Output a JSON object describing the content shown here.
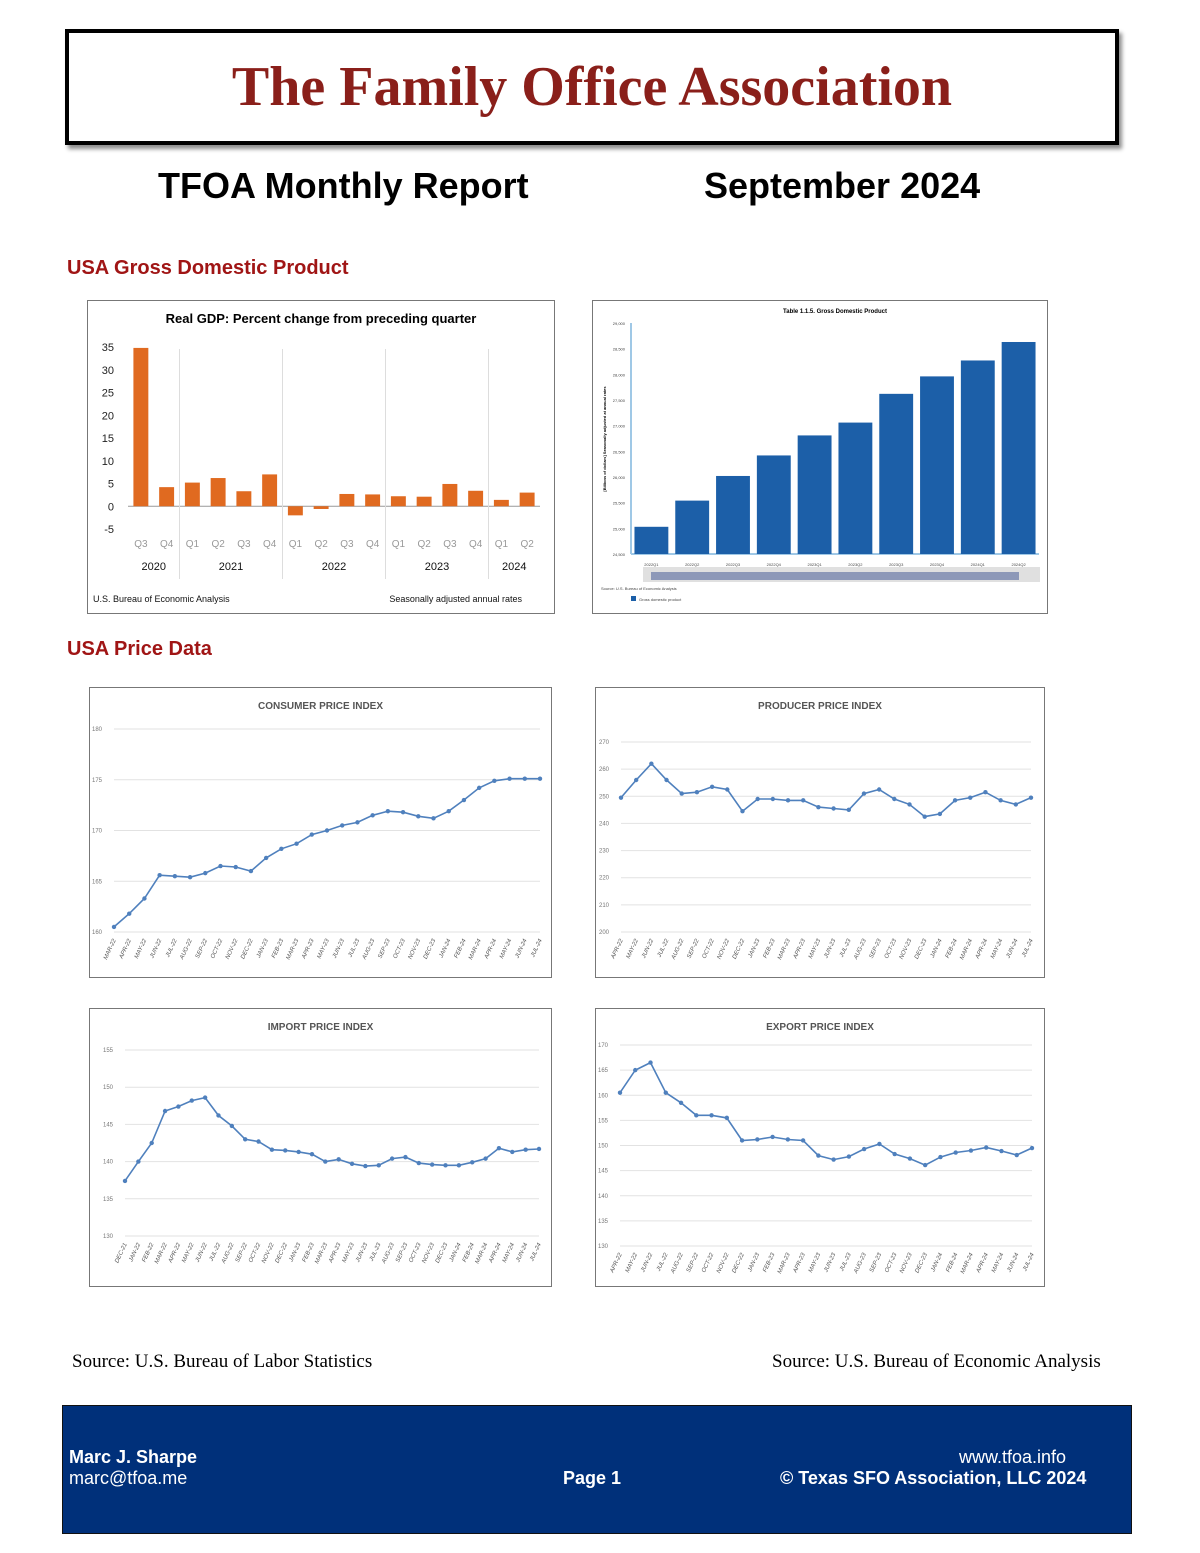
{
  "header": {
    "org_name": "The Family Office Association",
    "report_title": "TFOA Monthly Report",
    "report_date": "September 2024"
  },
  "sections": {
    "gdp": "USA Gross Domestic Product",
    "price": "USA Price Data"
  },
  "colors": {
    "title": "#8a1f1a",
    "section": "#a01515",
    "gdp_bar": "#e06a20",
    "gdp_level_bar": "#1c5fa8",
    "line": "#4f80bd",
    "footer_bg": "#00307a"
  },
  "sources": {
    "left": "Source: U.S. Bureau of Labor Statistics",
    "right": "Source: U.S. Bureau of Economic Analysis"
  },
  "footer": {
    "name": "Marc J. Sharpe",
    "email": "marc@tfoa.me",
    "page": "Page 1",
    "website": "www.tfoa.info",
    "copyright": "© Texas SFO Association, LLC 2024"
  },
  "chart_data": [
    {
      "type": "bar",
      "title": "Real GDP: Percent change from preceding quarter",
      "categories": [
        "Q3",
        "Q4",
        "Q1",
        "Q2",
        "Q3",
        "Q4",
        "Q1",
        "Q2",
        "Q3",
        "Q4",
        "Q1",
        "Q2",
        "Q3",
        "Q4",
        "Q1",
        "Q2"
      ],
      "years": [
        {
          "label": "2020",
          "start": 0,
          "end": 1
        },
        {
          "label": "2021",
          "start": 2,
          "end": 5
        },
        {
          "label": "2022",
          "start": 6,
          "end": 9
        },
        {
          "label": "2023",
          "start": 10,
          "end": 13
        },
        {
          "label": "2024",
          "start": 14,
          "end": 15
        }
      ],
      "values": [
        34.8,
        4.2,
        5.2,
        6.2,
        3.3,
        7.0,
        -2.0,
        -0.6,
        2.7,
        2.6,
        2.2,
        2.1,
        4.9,
        3.4,
        1.4,
        3.0
      ],
      "yticks": [
        35,
        30,
        25,
        20,
        15,
        10,
        5,
        0,
        -5
      ],
      "ylim": [
        -5,
        35
      ],
      "source_note": "U.S. Bureau of Economic Analysis",
      "note": "Seasonally adjusted annual rates"
    },
    {
      "type": "bar",
      "title": "Table 1.1.5. Gross Domestic Product",
      "ylabel": "[Billions of dollars] Seasonally adjusted at annual rates",
      "categories": [
        "2022Q1",
        "2022Q2",
        "2022Q3",
        "2022Q4",
        "2023Q1",
        "2023Q2",
        "2023Q3",
        "2023Q4",
        "2024Q1",
        "2024Q2"
      ],
      "values": [
        25030,
        25540,
        26020,
        26420,
        26810,
        27060,
        27620,
        27960,
        28270,
        28630
      ],
      "yticks": [
        29000,
        28500,
        28000,
        27500,
        27000,
        26500,
        26000,
        25500,
        25000,
        24500
      ],
      "ylim": [
        24500,
        29000
      ],
      "source_note": "Source: U.S. Bureau of Economic Analysis",
      "legend": "Gross domestic product"
    },
    {
      "type": "line",
      "title": "CONSUMER PRICE INDEX",
      "categories": [
        "MAR-22",
        "APR-22",
        "MAY-22",
        "JUN-22",
        "JUL-22",
        "AUG-22",
        "SEP-22",
        "OCT-22",
        "NOV-22",
        "DEC-22",
        "JAN-23",
        "FEB-23",
        "MAR-23",
        "APR-23",
        "MAY-23",
        "JUN-23",
        "JUL-23",
        "AUG-23",
        "SEP-23",
        "OCT-23",
        "NOV-23",
        "DEC-23",
        "JAN-24",
        "FEB-24",
        "MAR-24",
        "APR-24",
        "MAY-24",
        "JUN-24",
        "JUL-24"
      ],
      "values": [
        160.5,
        161.8,
        163.3,
        165.6,
        165.5,
        165.4,
        165.8,
        166.5,
        166.4,
        166.0,
        167.3,
        168.2,
        168.7,
        169.6,
        170.0,
        170.5,
        170.8,
        171.5,
        171.9,
        171.8,
        171.4,
        171.2,
        171.9,
        173.0,
        174.2,
        174.9,
        175.1,
        175.1,
        175.1
      ],
      "yticks": [
        180,
        175,
        170,
        165,
        160
      ],
      "ylim": [
        160,
        180
      ]
    },
    {
      "type": "line",
      "title": "PRODUCER PRICE INDEX",
      "categories": [
        "APR-22",
        "MAY-22",
        "JUN-22",
        "JUL-22",
        "AUG-22",
        "SEP-22",
        "OCT-22",
        "NOV-22",
        "DEC-22",
        "JAN-23",
        "FEB-23",
        "MAR-23",
        "APR-23",
        "MAY-23",
        "JUN-23",
        "JUL-23",
        "AUG-23",
        "SEP-23",
        "OCT-23",
        "NOV-23",
        "DEC-23",
        "JAN-24",
        "FEB-24",
        "MAR-24",
        "APR-24",
        "MAY-24",
        "JUN-24",
        "JUL-24"
      ],
      "values": [
        249.5,
        256.0,
        262.0,
        256.0,
        251.0,
        251.5,
        253.5,
        252.5,
        244.5,
        249.0,
        249.0,
        248.5,
        248.5,
        246.0,
        245.5,
        245.0,
        251.0,
        252.5,
        249.0,
        247.0,
        242.5,
        243.5,
        248.5,
        249.5,
        251.5,
        248.5,
        247.0,
        249.5
      ],
      "yticks": [
        270,
        260,
        250,
        240,
        230,
        220,
        210,
        200
      ],
      "ylim": [
        200,
        270
      ]
    },
    {
      "type": "line",
      "title": "IMPORT PRICE INDEX",
      "categories": [
        "DEC-21",
        "JAN-22",
        "FEB-22",
        "MAR-22",
        "APR-22",
        "MAY-22",
        "JUN-22",
        "JUL-22",
        "AUG-22",
        "SEP-22",
        "OCT-22",
        "NOV-22",
        "DEC-22",
        "JAN-23",
        "FEB-23",
        "MAR-23",
        "APR-23",
        "MAY-23",
        "JUN-23",
        "JUL-23",
        "AUG-23",
        "SEP-23",
        "OCT-23",
        "NOV-23",
        "DEC-23",
        "JAN-24",
        "FEB-24",
        "MAR-24",
        "APR-24",
        "MAY-24",
        "JUN-24",
        "JUL-24"
      ],
      "values": [
        137.4,
        140.0,
        142.5,
        146.8,
        147.4,
        148.2,
        148.6,
        146.2,
        144.8,
        143.0,
        142.7,
        141.6,
        141.5,
        141.3,
        141.0,
        140.0,
        140.3,
        139.7,
        139.4,
        139.5,
        140.4,
        140.6,
        139.8,
        139.6,
        139.5,
        139.5,
        139.9,
        140.4,
        141.8,
        141.3,
        141.6,
        141.7
      ],
      "yticks": [
        155,
        150,
        145,
        140,
        135,
        130
      ],
      "ylim": [
        130,
        155
      ]
    },
    {
      "type": "line",
      "title": "EXPORT PRICE INDEX",
      "categories": [
        "APR-22",
        "MAY-22",
        "JUN-22",
        "JUL-22",
        "AUG-22",
        "SEP-22",
        "OCT-22",
        "NOV-22",
        "DEC-22",
        "JAN-23",
        "FEB-23",
        "MAR-23",
        "APR-23",
        "MAY-23",
        "JUN-23",
        "JUL-23",
        "AUG-23",
        "SEP-23",
        "OCT-23",
        "NOV-23",
        "DEC-23",
        "JAN-24",
        "FEB-24",
        "MAR-24",
        "APR-24",
        "MAY-24",
        "JUN-24",
        "JUL-24"
      ],
      "values": [
        160.5,
        165.0,
        166.5,
        160.5,
        158.5,
        156.0,
        156.0,
        155.5,
        151.0,
        151.2,
        151.7,
        151.2,
        151.0,
        148.0,
        147.2,
        147.8,
        149.3,
        150.3,
        148.3,
        147.4,
        146.1,
        147.7,
        148.6,
        149.0,
        149.6,
        148.9,
        148.1,
        149.5
      ],
      "yticks": [
        170,
        165,
        160,
        155,
        150,
        145,
        140,
        135,
        130
      ],
      "ylim": [
        130,
        170
      ]
    }
  ]
}
